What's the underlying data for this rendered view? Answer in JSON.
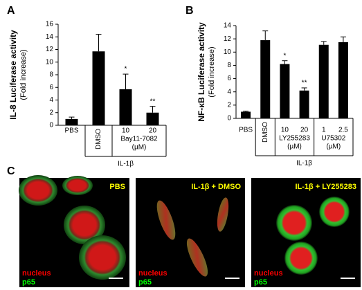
{
  "chart_data": [
    {
      "type": "bar",
      "panel": "A",
      "ylabel": "IL-8 Luciferase activity",
      "ylabel2": "(Fold increase)",
      "categories": [
        "PBS",
        "DMSO",
        "10",
        "20"
      ],
      "values": [
        1.0,
        11.7,
        5.7,
        2.0
      ],
      "errors": [
        0.3,
        2.7,
        2.4,
        1.0
      ],
      "color": "#000000",
      "annotations": [
        {
          "text": "*",
          "category": "10"
        },
        {
          "text": "**",
          "category": "20"
        }
      ],
      "groups": [
        {
          "label": "Bay11-7082",
          "unit": "(µM)",
          "members": [
            "10",
            "20"
          ]
        }
      ],
      "treatment": {
        "label": "IL-1β",
        "from": "DMSO"
      },
      "ylim": [
        0,
        16
      ],
      "yticks": [
        0,
        2,
        4,
        6,
        8,
        10,
        12,
        14,
        16
      ]
    },
    {
      "type": "bar",
      "panel": "B",
      "ylabel": "NF-κB Luciferase activity",
      "ylabel2": "(Fold increase)",
      "categories": [
        "PBS",
        "DMSO",
        "10",
        "20",
        "1",
        "2.5"
      ],
      "values": [
        1.0,
        11.8,
        8.2,
        4.2,
        11.1,
        11.5
      ],
      "errors": [
        0.1,
        1.4,
        0.5,
        0.4,
        0.5,
        0.8
      ],
      "color": "#000000",
      "annotations": [
        {
          "text": "*",
          "category": "10"
        },
        {
          "text": "**",
          "category": "20"
        }
      ],
      "groups": [
        {
          "label": "LY255283",
          "unit": "(µM)",
          "members": [
            "10",
            "20"
          ]
        },
        {
          "label": "U75302",
          "unit": "(µM)",
          "members": [
            "1",
            "2.5"
          ]
        }
      ],
      "treatment": {
        "label": "IL-1β",
        "from": "DMSO"
      },
      "ylim": [
        0,
        14
      ],
      "yticks": [
        0,
        2,
        4,
        6,
        8,
        10,
        12,
        14
      ]
    }
  ],
  "panel_c": {
    "label": "C",
    "images": [
      {
        "title": "PBS"
      },
      {
        "title": "IL-1β + DMSO"
      },
      {
        "title": "IL-1β + LY255283"
      }
    ],
    "legend": [
      {
        "text": "nucleus",
        "color": "#ff0000"
      },
      {
        "text": "p65",
        "color": "#00ff00"
      }
    ],
    "title_color": "#ffff00"
  }
}
